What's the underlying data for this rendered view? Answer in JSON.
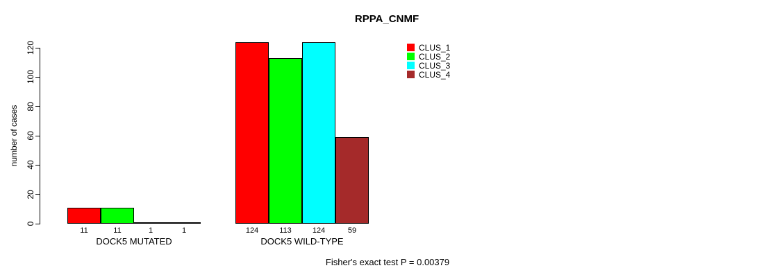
{
  "chart_data": {
    "type": "bar",
    "title": "RPPA_CNMF",
    "xlabel": "",
    "ylabel": "number of cases",
    "ylim": [
      0,
      120
    ],
    "yticks": [
      0,
      20,
      40,
      60,
      80,
      100,
      120
    ],
    "grid": false,
    "legend_position": "right",
    "categories": [
      "DOCK5 MUTATED",
      "DOCK5 WILD-TYPE"
    ],
    "series": [
      {
        "name": "CLUS_1",
        "color": "#FF0000",
        "values": [
          11,
          124
        ]
      },
      {
        "name": "CLUS_2",
        "color": "#00FF00",
        "values": [
          11,
          113
        ]
      },
      {
        "name": "CLUS_3",
        "color": "#00FFFF",
        "values": [
          1,
          124
        ]
      },
      {
        "name": "CLUS_4",
        "color": "#A52A2A",
        "values": [
          1,
          59
        ]
      }
    ],
    "bar_value_labels": [
      [
        "11",
        "11",
        "1",
        "1"
      ],
      [
        "124",
        "113",
        "124",
        "59"
      ]
    ],
    "annotation": "Fisher's exact test P = 0.00379"
  }
}
